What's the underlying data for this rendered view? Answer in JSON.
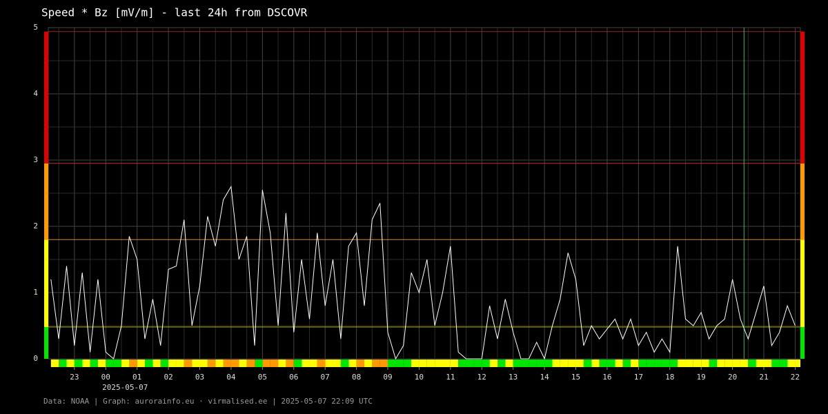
{
  "chart_data": {
    "type": "line",
    "title": "Speed * Bz [mV/m] - last 24h from DSCOVR",
    "date_label": "2025-05-07",
    "footer": "Data: NOAA | Graph: aurorainfo.eu · virmalised.ee | 2025-05-07 22:09 UTC",
    "xlim": [
      "2025-05-06 22:10",
      "2025-05-07 22:10"
    ],
    "ylim": [
      0,
      5
    ],
    "yticks": [
      0,
      1,
      2,
      3,
      4,
      5
    ],
    "xticks": [
      {
        "value": "2025-05-06 23:00",
        "label": "23"
      },
      {
        "value": "2025-05-07 00:00",
        "label": "00"
      },
      {
        "value": "2025-05-07 01:00",
        "label": "01"
      },
      {
        "value": "2025-05-07 02:00",
        "label": "02"
      },
      {
        "value": "2025-05-07 03:00",
        "label": "03"
      },
      {
        "value": "2025-05-07 04:00",
        "label": "04"
      },
      {
        "value": "2025-05-07 05:00",
        "label": "05"
      },
      {
        "value": "2025-05-07 06:00",
        "label": "06"
      },
      {
        "value": "2025-05-07 07:00",
        "label": "07"
      },
      {
        "value": "2025-05-07 08:00",
        "label": "08"
      },
      {
        "value": "2025-05-07 09:00",
        "label": "09"
      },
      {
        "value": "2025-05-07 10:00",
        "label": "10"
      },
      {
        "value": "2025-05-07 11:00",
        "label": "11"
      },
      {
        "value": "2025-05-07 12:00",
        "label": "12"
      },
      {
        "value": "2025-05-07 13:00",
        "label": "13"
      },
      {
        "value": "2025-05-07 14:00",
        "label": "14"
      },
      {
        "value": "2025-05-07 15:00",
        "label": "15"
      },
      {
        "value": "2025-05-07 16:00",
        "label": "16"
      },
      {
        "value": "2025-05-07 17:00",
        "label": "17"
      },
      {
        "value": "2025-05-07 18:00",
        "label": "18"
      },
      {
        "value": "2025-05-07 19:00",
        "label": "19"
      },
      {
        "value": "2025-05-07 20:00",
        "label": "20"
      },
      {
        "value": "2025-05-07 21:00",
        "label": "21"
      },
      {
        "value": "2025-05-07 22:00",
        "label": "22"
      }
    ],
    "grid": true,
    "levels": [
      {
        "from": 0,
        "to": 0.48,
        "color": "#00e600",
        "line": "#b8b800"
      },
      {
        "from": 0.48,
        "to": 1.8,
        "color": "#ffff00",
        "line": "#d08a40"
      },
      {
        "from": 1.8,
        "to": 2.95,
        "color": "#ff9900",
        "line": "#c03030"
      },
      {
        "from": 2.95,
        "to": 4.94,
        "color": "#e00000",
        "line": "#a02020"
      }
    ],
    "vline": {
      "x": "2025-05-07 20:22",
      "color": "#55aa77"
    },
    "series": [
      {
        "color": "#ffffff",
        "x": [
          "2025-05-06 22:15",
          "2025-05-06 22:30",
          "2025-05-06 22:45",
          "2025-05-06 23:00",
          "2025-05-06 23:15",
          "2025-05-06 23:30",
          "2025-05-06 23:45",
          "2025-05-07 00:00",
          "2025-05-07 00:15",
          "2025-05-07 00:30",
          "2025-05-07 00:45",
          "2025-05-07 01:00",
          "2025-05-07 01:15",
          "2025-05-07 01:30",
          "2025-05-07 01:45",
          "2025-05-07 02:00",
          "2025-05-07 02:15",
          "2025-05-07 02:30",
          "2025-05-07 02:45",
          "2025-05-07 03:00",
          "2025-05-07 03:15",
          "2025-05-07 03:30",
          "2025-05-07 03:45",
          "2025-05-07 04:00",
          "2025-05-07 04:15",
          "2025-05-07 04:30",
          "2025-05-07 04:45",
          "2025-05-07 05:00",
          "2025-05-07 05:15",
          "2025-05-07 05:30",
          "2025-05-07 05:45",
          "2025-05-07 06:00",
          "2025-05-07 06:15",
          "2025-05-07 06:30",
          "2025-05-07 06:45",
          "2025-05-07 07:00",
          "2025-05-07 07:15",
          "2025-05-07 07:30",
          "2025-05-07 07:45",
          "2025-05-07 08:00",
          "2025-05-07 08:15",
          "2025-05-07 08:30",
          "2025-05-07 08:45",
          "2025-05-07 09:00",
          "2025-05-07 09:15",
          "2025-05-07 09:30",
          "2025-05-07 09:45",
          "2025-05-07 10:00",
          "2025-05-07 10:15",
          "2025-05-07 10:30",
          "2025-05-07 10:45",
          "2025-05-07 11:00",
          "2025-05-07 11:15",
          "2025-05-07 11:30",
          "2025-05-07 11:45",
          "2025-05-07 12:00",
          "2025-05-07 12:15",
          "2025-05-07 12:30",
          "2025-05-07 12:45",
          "2025-05-07 13:00",
          "2025-05-07 13:15",
          "2025-05-07 13:30",
          "2025-05-07 13:45",
          "2025-05-07 14:00",
          "2025-05-07 14:15",
          "2025-05-07 14:30",
          "2025-05-07 14:45",
          "2025-05-07 15:00",
          "2025-05-07 15:15",
          "2025-05-07 15:30",
          "2025-05-07 15:45",
          "2025-05-07 16:00",
          "2025-05-07 16:15",
          "2025-05-07 16:30",
          "2025-05-07 16:45",
          "2025-05-07 17:00",
          "2025-05-07 17:15",
          "2025-05-07 17:30",
          "2025-05-07 17:45",
          "2025-05-07 18:00",
          "2025-05-07 18:15",
          "2025-05-07 18:30",
          "2025-05-07 18:45",
          "2025-05-07 19:00",
          "2025-05-07 19:15",
          "2025-05-07 19:30",
          "2025-05-07 19:45",
          "2025-05-07 20:00",
          "2025-05-07 20:15",
          "2025-05-07 20:30",
          "2025-05-07 20:45",
          "2025-05-07 21:00",
          "2025-05-07 21:15",
          "2025-05-07 21:30",
          "2025-05-07 21:45",
          "2025-05-07 22:00"
        ],
        "values": [
          1.2,
          0.3,
          1.4,
          0.2,
          1.3,
          0.1,
          1.2,
          0.1,
          0.0,
          0.5,
          1.85,
          1.5,
          0.3,
          0.9,
          0.2,
          1.35,
          1.4,
          2.1,
          0.5,
          1.1,
          2.15,
          1.7,
          2.4,
          2.6,
          1.5,
          1.85,
          0.2,
          2.55,
          1.9,
          0.5,
          2.2,
          0.4,
          1.5,
          0.6,
          1.9,
          0.8,
          1.5,
          0.3,
          1.7,
          1.9,
          0.8,
          2.1,
          2.35,
          0.4,
          0.0,
          0.2,
          1.3,
          1.0,
          1.5,
          0.5,
          1.0,
          1.7,
          0.1,
          0.0,
          0.0,
          0.0,
          0.8,
          0.3,
          0.9,
          0.4,
          0.0,
          0.0,
          0.25,
          0.0,
          0.5,
          0.9,
          1.6,
          1.2,
          0.2,
          0.5,
          0.3,
          0.45,
          0.6,
          0.3,
          0.6,
          0.2,
          0.4,
          0.1,
          0.3,
          0.1,
          1.7,
          0.6,
          0.5,
          0.7,
          0.3,
          0.5,
          0.6,
          1.2,
          0.6,
          0.3,
          0.7,
          1.1,
          0.2,
          0.4,
          0.8,
          0.5
        ]
      }
    ]
  }
}
